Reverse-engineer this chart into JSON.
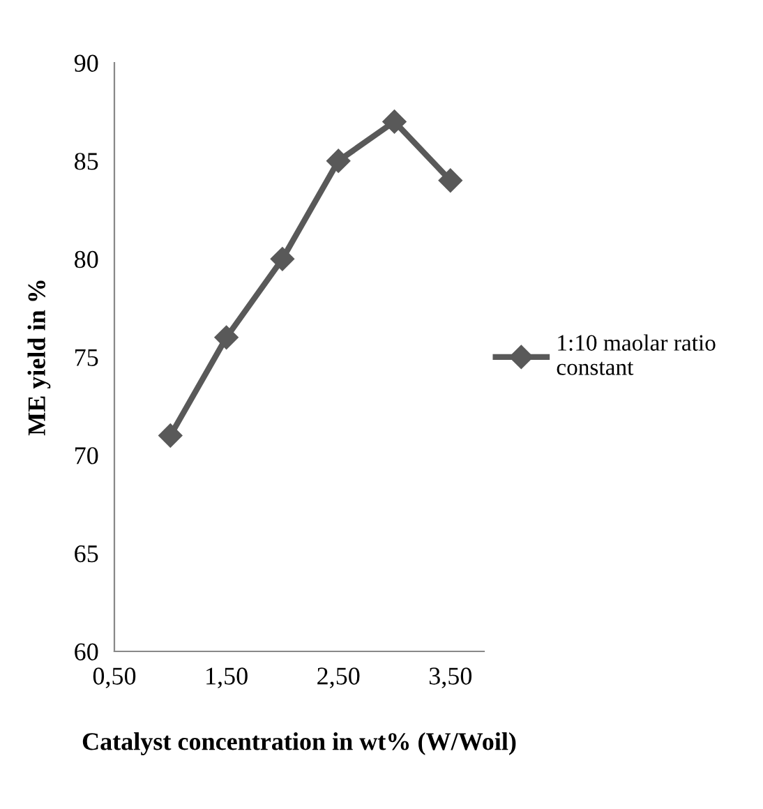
{
  "chart_data": {
    "type": "line",
    "xlabel": "Catalyst concentration in wt% (W/Woil)",
    "ylabel": "ME yield in %",
    "x": [
      1.0,
      1.5,
      2.0,
      2.5,
      3.0,
      3.5
    ],
    "series": [
      {
        "name": "1:10 maolar ratio\nconstant",
        "color": "#595959",
        "values": [
          71,
          76,
          80,
          85,
          87,
          84
        ]
      }
    ],
    "xlim": [
      0.5,
      3.8
    ],
    "xticks": [
      {
        "value": 0.5,
        "label": "0,50"
      },
      {
        "value": 1.5,
        "label": "1,50"
      },
      {
        "value": 2.5,
        "label": "2,50"
      },
      {
        "value": 3.5,
        "label": "3,50"
      }
    ],
    "ylim": [
      60,
      90
    ],
    "yticks": [
      60,
      65,
      70,
      75,
      80,
      85,
      90
    ],
    "grid": false,
    "legend": "right",
    "marker": "diamond",
    "line_style": "solid"
  }
}
